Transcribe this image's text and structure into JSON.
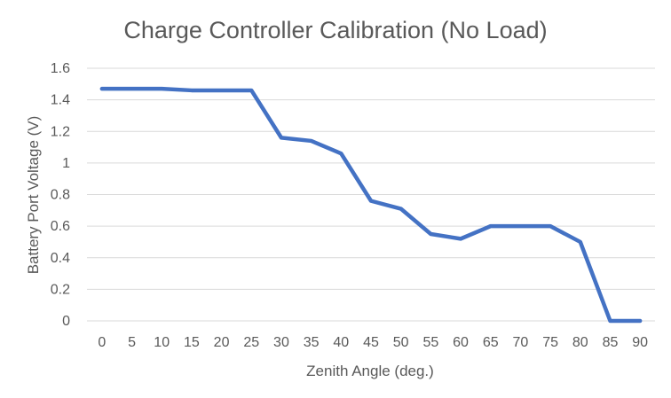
{
  "chart_data": {
    "type": "line",
    "title": "Charge Controller Calibration (No Load)",
    "xlabel": "Zenith Angle (deg.)",
    "ylabel": "Battery Port Voltage (V)",
    "categories": [
      "0",
      "5",
      "10",
      "15",
      "20",
      "25",
      "30",
      "35",
      "40",
      "45",
      "50",
      "55",
      "60",
      "65",
      "70",
      "75",
      "80",
      "85",
      "90"
    ],
    "series": [
      {
        "values": [
          1.47,
          1.47,
          1.47,
          1.46,
          1.46,
          1.46,
          1.16,
          1.14,
          1.06,
          0.76,
          0.71,
          0.55,
          0.52,
          0.6,
          0.6,
          0.6,
          0.5,
          0.0,
          0.0
        ],
        "color": "#4472c4"
      }
    ],
    "ylim": [
      0,
      1.6
    ],
    "yticks": [
      "0",
      "0.2",
      "0.4",
      "0.6",
      "0.8",
      "1",
      "1.2",
      "1.4",
      "1.6"
    ],
    "grid": true,
    "legend": "none"
  }
}
